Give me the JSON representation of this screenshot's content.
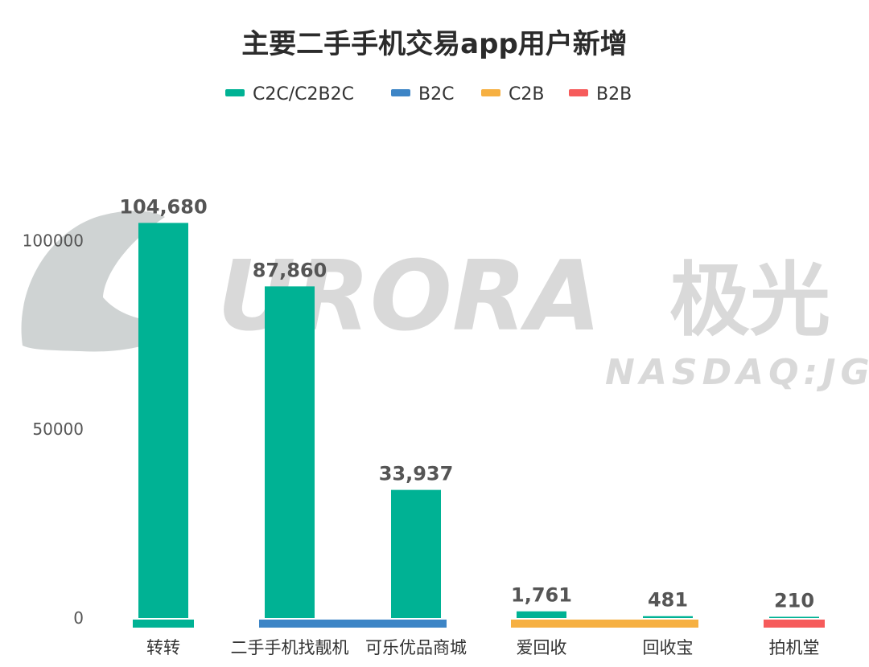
{
  "chart_data": {
    "type": "bar",
    "title": "主要二手手机交易app用户新增",
    "categories": [
      "转转",
      "二手手机找靓机",
      "可乐优品商城",
      "爱回收",
      "回收宝",
      "拍机堂"
    ],
    "values": [
      104680,
      87860,
      33937,
      1761,
      481,
      210
    ],
    "data_labels": [
      "104,680",
      "87,860",
      "33,937",
      "1,761",
      "481",
      "210"
    ],
    "bar_color": "#00b294",
    "ylim": [
      0,
      110000
    ],
    "yticks": [
      0,
      50000,
      100000
    ],
    "ytick_labels": [
      "0",
      "50000",
      "100000"
    ],
    "xlabel": "",
    "ylabel": "",
    "legend": {
      "position": "top-center",
      "entries": [
        {
          "name": "C2C/C2B2C",
          "color": "#00b294"
        },
        {
          "name": "B2C",
          "color": "#3d85c6"
        },
        {
          "name": "C2B",
          "color": "#f6b042"
        },
        {
          "name": "B2B",
          "color": "#f65b5b"
        }
      ]
    },
    "groups": [
      {
        "legend": "C2C/C2B2C",
        "first": 0,
        "last": 0
      },
      {
        "legend": "B2C",
        "first": 1,
        "last": 2
      },
      {
        "legend": "C2B",
        "first": 3,
        "last": 4
      },
      {
        "legend": "B2B",
        "first": 5,
        "last": 5
      }
    ],
    "grid": false
  },
  "watermark": {
    "text": "URORA",
    "chinese": "极光",
    "sub": "NASDAQ:JG"
  }
}
